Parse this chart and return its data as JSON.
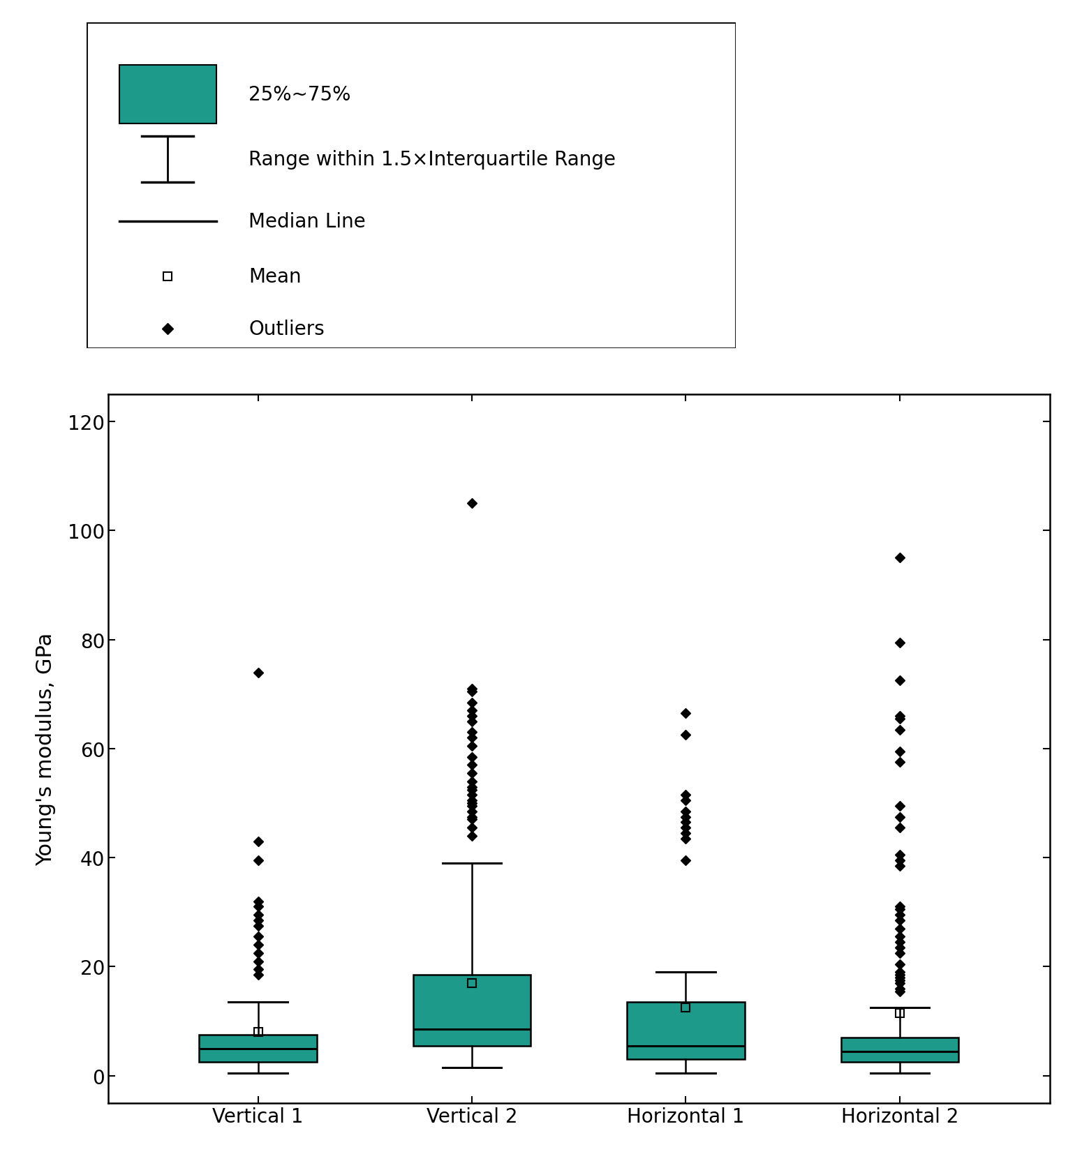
{
  "categories": [
    "Vertical 1",
    "Vertical 2",
    "Horizontal 1",
    "Horizontal 2"
  ],
  "box_color": "#1D9A8A",
  "box_edge_color": "#000000",
  "ylabel": "Young's modulus, GPa",
  "ylim": [
    -5,
    125
  ],
  "yticks": [
    0,
    20,
    40,
    60,
    80,
    100,
    120
  ],
  "label_fontsize": 22,
  "tick_fontsize": 20,
  "legend_fontsize": 20,
  "box_stats": [
    {
      "name": "Vertical 1",
      "q1": 2.5,
      "median": 5.0,
      "q3": 7.5,
      "mean": 8.0,
      "whislo": 0.5,
      "whishi": 13.5,
      "fliers": [
        18.5,
        19.5,
        21.0,
        22.5,
        24.0,
        25.5,
        27.5,
        28.5,
        29.5,
        31.0,
        32.0,
        39.5,
        43.0,
        74.0
      ]
    },
    {
      "name": "Vertical 2",
      "q1": 5.5,
      "median": 8.5,
      "q3": 18.5,
      "mean": 17.0,
      "whislo": 1.5,
      "whishi": 39.0,
      "fliers": [
        44.0,
        45.5,
        47.0,
        47.5,
        48.5,
        49.5,
        50.0,
        50.5,
        51.5,
        52.5,
        53.0,
        54.0,
        55.5,
        57.0,
        58.5,
        60.5,
        62.0,
        63.0,
        65.0,
        66.0,
        67.0,
        68.5,
        70.5,
        71.0,
        105.0
      ]
    },
    {
      "name": "Horizontal 1",
      "q1": 3.0,
      "median": 5.5,
      "q3": 13.5,
      "mean": 12.5,
      "whislo": 0.5,
      "whishi": 19.0,
      "fliers": [
        39.5,
        43.5,
        44.5,
        45.5,
        46.5,
        47.5,
        48.5,
        50.5,
        51.5,
        62.5,
        66.5
      ]
    },
    {
      "name": "Horizontal 2",
      "q1": 2.5,
      "median": 4.5,
      "q3": 7.0,
      "mean": 11.5,
      "whislo": 0.5,
      "whishi": 12.5,
      "fliers": [
        15.5,
        16.0,
        17.0,
        17.5,
        18.0,
        18.5,
        19.0,
        20.5,
        22.5,
        23.5,
        24.5,
        25.5,
        27.0,
        28.5,
        29.5,
        30.5,
        31.0,
        38.5,
        39.5,
        40.5,
        45.5,
        47.5,
        49.5,
        57.5,
        59.5,
        63.5,
        65.5,
        66.0,
        72.5,
        79.5,
        95.0
      ]
    }
  ]
}
